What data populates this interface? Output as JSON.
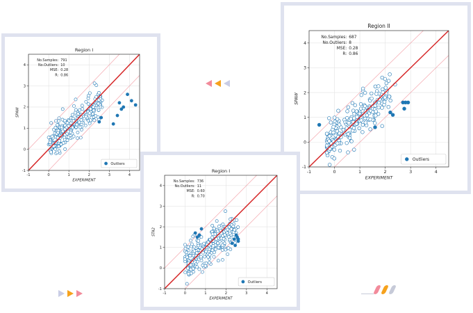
{
  "colors": {
    "frame": "#dfe2ef",
    "diagonal": "#d62728",
    "band": "#f4a6ad",
    "marker": "#1f77b4",
    "grid": "#e3e3e3",
    "chevron_pink": "#f28b9b",
    "chevron_orange": "#f6a21d",
    "chevron_lavender": "#c9cde6",
    "dash_pink": "#f28b9b",
    "dash_orange": "#f6a21d",
    "dash_gray": "#c6cad8"
  },
  "decorations": {
    "top_chevrons_icon": "left-chevrons-icon",
    "bottom_chevrons_icon": "right-chevrons-icon",
    "dashes_icon": "slanted-dashes-icon"
  },
  "chart_data": [
    {
      "type": "scatter",
      "title": "Region I",
      "xlabel": "EXPERIMENT",
      "ylabel": "SPAW",
      "xlim": [
        -1,
        4.5
      ],
      "ylim": [
        -1,
        4.5
      ],
      "xticks": [
        "-1",
        "0",
        "1",
        "2",
        "3",
        "4"
      ],
      "yticks": [
        "-1",
        "0",
        "1",
        "2",
        "3",
        "4"
      ],
      "grid": true,
      "legend": "Outliers",
      "legend_position": "lower-right",
      "stats": [
        {
          "label": "No.Samples:",
          "value": "791"
        },
        {
          "label": "No.Outliers:",
          "value": "10"
        },
        {
          "label": "MSE:",
          "value": "0.28"
        },
        {
          "label": "R:",
          "value": "0.86"
        }
      ],
      "diagonal": [
        [
          -1,
          -1
        ],
        [
          4.5,
          4.5
        ]
      ],
      "band_offset": 1,
      "cloud": {
        "x_range": [
          0,
          2.6
        ],
        "center_slope": 0.78,
        "center_intercept": 0.25,
        "spread": 0.38,
        "count": 260,
        "seed": 11
      },
      "outliers": {
        "x": [
          3.5,
          3.6,
          3.7,
          3.9,
          4.1,
          4.3,
          3.4,
          2.5,
          2.6,
          3.2
        ],
        "y": [
          2.2,
          1.9,
          2.0,
          2.6,
          2.3,
          2.1,
          1.6,
          1.3,
          1.5,
          1.2
        ]
      }
    },
    {
      "type": "scatter",
      "title": "Region II",
      "xlabel": "EXPERIMENT",
      "ylabel": "SPAW",
      "xlim": [
        -1,
        4.5
      ],
      "ylim": [
        -1,
        4.5
      ],
      "xticks": [
        "-1",
        "0",
        "1",
        "2",
        "3",
        "4"
      ],
      "yticks": [
        "-1",
        "0",
        "1",
        "2",
        "3",
        "4"
      ],
      "grid": true,
      "legend": "Outliers",
      "legend_position": "lower-right",
      "stats": [
        {
          "label": "No.Samples:",
          "value": "687"
        },
        {
          "label": "No.Outliers:",
          "value": "8"
        },
        {
          "label": "MSE:",
          "value": "0.28"
        },
        {
          "label": "R:",
          "value": "0.86"
        }
      ],
      "diagonal": [
        [
          -1,
          -1
        ],
        [
          4.5,
          4.5
        ]
      ],
      "band_offset": 1,
      "cloud": {
        "x_range": [
          -0.3,
          2.3
        ],
        "center_slope": 0.78,
        "center_intercept": 0.2,
        "spread": 0.38,
        "count": 230,
        "seed": 23
      },
      "outliers": {
        "x": [
          2.2,
          2.3,
          2.7,
          2.8,
          2.9,
          2.75,
          -0.6,
          1.6
        ],
        "y": [
          1.2,
          1.1,
          1.6,
          1.6,
          1.6,
          1.35,
          0.7,
          0.6
        ]
      }
    },
    {
      "type": "scatter",
      "title": "Region I",
      "xlabel": "EXPERIMENT",
      "ylabel": "STA2",
      "xlim": [
        -1,
        4.5
      ],
      "ylim": [
        -1,
        4.5
      ],
      "xticks": [
        "-1",
        "0",
        "1",
        "2",
        "3",
        "4"
      ],
      "yticks": [
        "-1",
        "0",
        "1",
        "2",
        "3",
        "4"
      ],
      "grid": true,
      "legend": "Outliers",
      "legend_position": "lower-right",
      "stats": [
        {
          "label": "No.Samples:",
          "value": "736"
        },
        {
          "label": "No.Outliers:",
          "value": "11"
        },
        {
          "label": "MSE:",
          "value": "0.60"
        },
        {
          "label": "R:",
          "value": "0.70"
        }
      ],
      "diagonal": [
        [
          -1,
          -1
        ],
        [
          4.5,
          4.5
        ]
      ],
      "band_offset": 1,
      "cloud": {
        "x_range": [
          0,
          2.5
        ],
        "center_slope": 0.6,
        "center_intercept": 0.3,
        "spread": 0.42,
        "count": 260,
        "seed": 37
      },
      "outliers": {
        "x": [
          0.5,
          0.6,
          0.7,
          2.4,
          2.6,
          2.55,
          2.5,
          2.3,
          0.8,
          2.45,
          2.6
        ],
        "y": [
          1.7,
          1.5,
          1.6,
          1.4,
          1.3,
          1.5,
          1.6,
          1.2,
          1.9,
          1.1,
          1.4
        ]
      }
    }
  ]
}
